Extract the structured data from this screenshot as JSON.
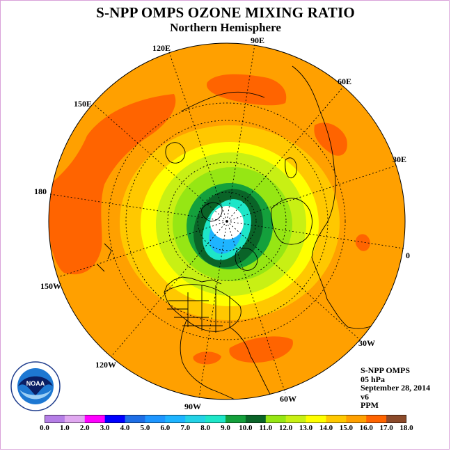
{
  "header": {
    "title": "S-NPP OMPS OZONE MIXING RATIO",
    "subtitle": "Northern Hemisphere"
  },
  "longitude_labels": [
    {
      "id": "lon-120e",
      "text": "120E"
    },
    {
      "id": "lon-90e",
      "text": "90E"
    },
    {
      "id": "lon-60e",
      "text": "60E"
    },
    {
      "id": "lon-150e",
      "text": "150E"
    },
    {
      "id": "lon-30e",
      "text": "30E"
    },
    {
      "id": "lon-180",
      "text": "180"
    },
    {
      "id": "lon-0",
      "text": "0"
    },
    {
      "id": "lon-150w",
      "text": "150W"
    },
    {
      "id": "lon-30w",
      "text": "30W"
    },
    {
      "id": "lon-120w",
      "text": "120W"
    },
    {
      "id": "lon-60w",
      "text": "60W"
    },
    {
      "id": "lon-90w",
      "text": "90W"
    }
  ],
  "info": {
    "instrument": "S-NPP OMPS",
    "level": "05 hPa",
    "date": "September 28, 2014",
    "version": "v6",
    "units": "PPM"
  },
  "logo": {
    "text": "NOAA"
  },
  "colorbar": {
    "labels": [
      "0.0",
      "1.0",
      "2.0",
      "3.0",
      "4.0",
      "5.0",
      "6.0",
      "7.0",
      "8.0",
      "9.0",
      "10.0",
      "11.0",
      "12.0",
      "13.0",
      "14.0",
      "15.0",
      "16.0",
      "17.0",
      "18.0"
    ],
    "colors": [
      "#b57ee6",
      "#e0a8f0",
      "#ff00ff",
      "#0000ff",
      "#1e6ee6",
      "#1e96ff",
      "#1eb4ff",
      "#24d2e6",
      "#1ee6c8",
      "#14a03c",
      "#0a6428",
      "#96e614",
      "#c8f014",
      "#ffff00",
      "#ffc800",
      "#ffa000",
      "#ff6400",
      "#ff0000",
      "#8b4a2a"
    ]
  },
  "colors": {
    "polar": "#ffffff",
    "frame": "#d9a0d9"
  }
}
